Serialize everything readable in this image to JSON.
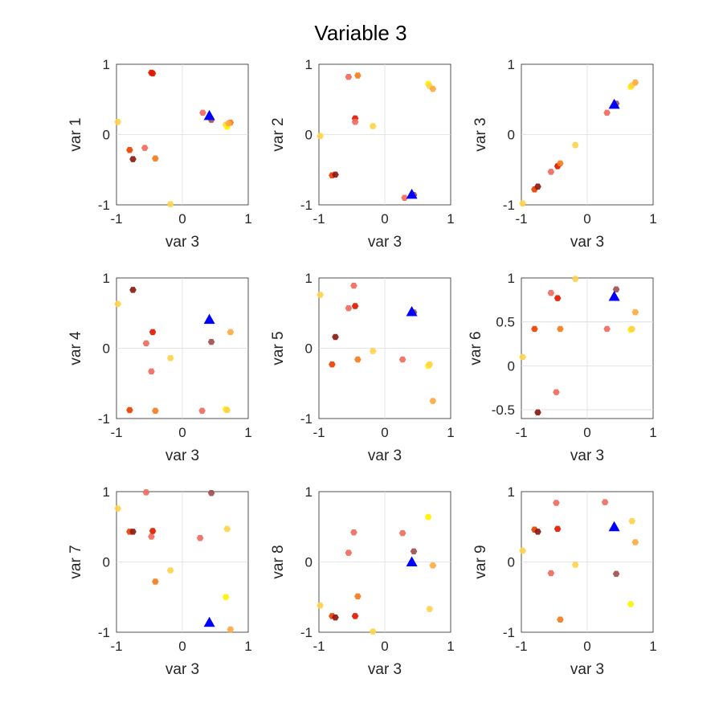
{
  "figure": {
    "title": "Variable 3"
  },
  "colors": {
    "marker_fill": "#0000ff",
    "zero_line": "#dcdcdc",
    "axis": "#262626"
  },
  "chart_data": [
    {
      "type": "scatter",
      "xlabel": "var 3",
      "ylabel": "var 1",
      "xlim": [
        -1,
        1
      ],
      "ylim": [
        -1,
        1
      ],
      "xticks": [
        -1,
        0,
        1
      ],
      "yticks": [
        -1,
        0,
        1
      ],
      "points": [
        {
          "x": -0.98,
          "y": 0.18,
          "color": "#ffd24a"
        },
        {
          "x": -0.8,
          "y": -0.22,
          "color": "#ee4000"
        },
        {
          "x": -0.75,
          "y": -0.35,
          "color": "#8b1a10"
        },
        {
          "x": -0.57,
          "y": -0.19,
          "color": "#f06a60"
        },
        {
          "x": -0.47,
          "y": 0.88,
          "color": "#e01a00"
        },
        {
          "x": -0.45,
          "y": 0.87,
          "color": "#e01a00"
        },
        {
          "x": -0.41,
          "y": -0.34,
          "color": "#f57c1e"
        },
        {
          "x": -0.18,
          "y": -0.99,
          "color": "#ffd24a"
        },
        {
          "x": 0.31,
          "y": 0.31,
          "color": "#f06a60"
        },
        {
          "x": 0.44,
          "y": 0.21,
          "color": "#a05050"
        },
        {
          "x": 0.66,
          "y": 0.14,
          "color": "#ffd24a"
        },
        {
          "x": 0.68,
          "y": 0.11,
          "color": "#fff200"
        },
        {
          "x": 0.73,
          "y": 0.17,
          "color": "#f57c1e"
        },
        {
          "x": 0.7,
          "y": 0.16,
          "color": "#ffaa40"
        }
      ],
      "marker": {
        "x": 0.41,
        "y": 0.27
      }
    },
    {
      "type": "scatter",
      "xlabel": "var 3",
      "ylabel": "var 2",
      "xlim": [
        -1,
        1
      ],
      "ylim": [
        -1,
        1
      ],
      "xticks": [
        -1,
        0,
        1
      ],
      "yticks": [
        -1,
        0,
        1
      ],
      "points": [
        {
          "x": -0.98,
          "y": -0.02,
          "color": "#ffd24a"
        },
        {
          "x": -0.8,
          "y": -0.58,
          "color": "#ee4000"
        },
        {
          "x": -0.75,
          "y": -0.57,
          "color": "#8b1a10"
        },
        {
          "x": -0.55,
          "y": 0.82,
          "color": "#f06a60"
        },
        {
          "x": -0.45,
          "y": 0.23,
          "color": "#e01a00"
        },
        {
          "x": -0.45,
          "y": 0.18,
          "color": "#f06a60"
        },
        {
          "x": -0.41,
          "y": 0.84,
          "color": "#f57c1e"
        },
        {
          "x": -0.18,
          "y": 0.12,
          "color": "#ffd24a"
        },
        {
          "x": 0.3,
          "y": -0.9,
          "color": "#f06a60"
        },
        {
          "x": 0.44,
          "y": -0.86,
          "color": "#a05050"
        },
        {
          "x": 0.66,
          "y": 0.72,
          "color": "#fff200"
        },
        {
          "x": 0.68,
          "y": 0.69,
          "color": "#ffd24a"
        },
        {
          "x": 0.73,
          "y": 0.65,
          "color": "#ffaa40"
        }
      ],
      "marker": {
        "x": 0.41,
        "y": -0.85
      }
    },
    {
      "type": "scatter",
      "xlabel": "var 3",
      "ylabel": "var 3",
      "xlim": [
        -1,
        1
      ],
      "ylim": [
        -1,
        1
      ],
      "xticks": [
        -1,
        0,
        1
      ],
      "yticks": [
        -1,
        0,
        1
      ],
      "points": [
        {
          "x": -0.98,
          "y": -0.98,
          "color": "#ffd24a"
        },
        {
          "x": -0.8,
          "y": -0.78,
          "color": "#ee4000"
        },
        {
          "x": -0.75,
          "y": -0.74,
          "color": "#8b1a10"
        },
        {
          "x": -0.55,
          "y": -0.53,
          "color": "#f06a60"
        },
        {
          "x": -0.45,
          "y": -0.45,
          "color": "#e01a00"
        },
        {
          "x": -0.41,
          "y": -0.41,
          "color": "#f57c1e"
        },
        {
          "x": -0.18,
          "y": -0.15,
          "color": "#ffd24a"
        },
        {
          "x": 0.3,
          "y": 0.31,
          "color": "#f06a60"
        },
        {
          "x": 0.44,
          "y": 0.44,
          "color": "#a05050"
        },
        {
          "x": 0.66,
          "y": 0.68,
          "color": "#fff200"
        },
        {
          "x": 0.68,
          "y": 0.7,
          "color": "#ffd24a"
        },
        {
          "x": 0.73,
          "y": 0.74,
          "color": "#ffaa40"
        }
      ],
      "marker": {
        "x": 0.41,
        "y": 0.43
      }
    },
    {
      "type": "scatter",
      "xlabel": "var 3",
      "ylabel": "var 4",
      "xlim": [
        -1,
        1
      ],
      "ylim": [
        -1,
        1
      ],
      "xticks": [
        -1,
        0,
        1
      ],
      "yticks": [
        -1,
        0,
        1
      ],
      "points": [
        {
          "x": -0.98,
          "y": 0.63,
          "color": "#ffd24a"
        },
        {
          "x": -0.8,
          "y": -0.88,
          "color": "#ee4000"
        },
        {
          "x": -0.75,
          "y": 0.83,
          "color": "#8b1a10"
        },
        {
          "x": -0.55,
          "y": 0.07,
          "color": "#f06a60"
        },
        {
          "x": -0.45,
          "y": 0.23,
          "color": "#e01a00"
        },
        {
          "x": -0.47,
          "y": -0.33,
          "color": "#f06a60"
        },
        {
          "x": -0.41,
          "y": -0.89,
          "color": "#f57c1e"
        },
        {
          "x": -0.18,
          "y": -0.14,
          "color": "#ffd24a"
        },
        {
          "x": 0.3,
          "y": -0.89,
          "color": "#f06a60"
        },
        {
          "x": 0.44,
          "y": 0.09,
          "color": "#a05050"
        },
        {
          "x": 0.66,
          "y": -0.87,
          "color": "#fff200"
        },
        {
          "x": 0.68,
          "y": -0.88,
          "color": "#ffd24a"
        },
        {
          "x": 0.73,
          "y": 0.23,
          "color": "#ffaa40"
        }
      ],
      "marker": {
        "x": 0.41,
        "y": 0.41
      }
    },
    {
      "type": "scatter",
      "xlabel": "var 3",
      "ylabel": "var 5",
      "xlim": [
        -1,
        1
      ],
      "ylim": [
        -1,
        1
      ],
      "xticks": [
        -1,
        0,
        1
      ],
      "yticks": [
        -1,
        0,
        1
      ],
      "points": [
        {
          "x": -0.98,
          "y": 0.76,
          "color": "#ffd24a"
        },
        {
          "x": -0.8,
          "y": -0.23,
          "color": "#ee4000"
        },
        {
          "x": -0.75,
          "y": 0.16,
          "color": "#8b1a10"
        },
        {
          "x": -0.55,
          "y": 0.57,
          "color": "#f06a60"
        },
        {
          "x": -0.47,
          "y": 0.89,
          "color": "#f06a60"
        },
        {
          "x": -0.45,
          "y": 0.6,
          "color": "#e01a00"
        },
        {
          "x": -0.41,
          "y": -0.16,
          "color": "#f57c1e"
        },
        {
          "x": -0.18,
          "y": -0.04,
          "color": "#ffd24a"
        },
        {
          "x": 0.27,
          "y": -0.16,
          "color": "#f06a60"
        },
        {
          "x": 0.44,
          "y": 0.51,
          "color": "#a05050"
        },
        {
          "x": 0.66,
          "y": -0.25,
          "color": "#fff200"
        },
        {
          "x": 0.68,
          "y": -0.23,
          "color": "#ffd24a"
        },
        {
          "x": 0.73,
          "y": -0.75,
          "color": "#ffaa40"
        }
      ],
      "marker": {
        "x": 0.41,
        "y": 0.52
      }
    },
    {
      "type": "scatter",
      "xlabel": "var 3",
      "ylabel": "var 6",
      "xlim": [
        -1,
        1
      ],
      "ylim": [
        -0.6,
        1
      ],
      "xticks": [
        -1,
        0,
        1
      ],
      "yticks": [
        -0.5,
        0,
        0.5,
        1
      ],
      "yticklabels": [
        "-0.5",
        "0",
        "0.5",
        "1"
      ],
      "points": [
        {
          "x": -0.98,
          "y": 0.1,
          "color": "#ffd24a"
        },
        {
          "x": -0.8,
          "y": 0.42,
          "color": "#ee4000"
        },
        {
          "x": -0.75,
          "y": -0.53,
          "color": "#8b1a10"
        },
        {
          "x": -0.55,
          "y": 0.83,
          "color": "#f06a60"
        },
        {
          "x": -0.47,
          "y": -0.3,
          "color": "#f06a60"
        },
        {
          "x": -0.45,
          "y": 0.77,
          "color": "#e01a00"
        },
        {
          "x": -0.41,
          "y": 0.42,
          "color": "#f57c1e"
        },
        {
          "x": -0.18,
          "y": 0.99,
          "color": "#ffd24a"
        },
        {
          "x": 0.3,
          "y": 0.42,
          "color": "#f06a60"
        },
        {
          "x": 0.44,
          "y": 0.87,
          "color": "#a05050"
        },
        {
          "x": 0.66,
          "y": 0.41,
          "color": "#fff200"
        },
        {
          "x": 0.68,
          "y": 0.42,
          "color": "#ffd24a"
        },
        {
          "x": 0.73,
          "y": 0.61,
          "color": "#ffaa40"
        }
      ],
      "marker": {
        "x": 0.41,
        "y": 0.79
      }
    },
    {
      "type": "scatter",
      "xlabel": "var 3",
      "ylabel": "var 7",
      "xlim": [
        -1,
        1
      ],
      "ylim": [
        -1,
        1
      ],
      "xticks": [
        -1,
        0,
        1
      ],
      "yticks": [
        -1,
        0,
        1
      ],
      "points": [
        {
          "x": -0.98,
          "y": 0.76,
          "color": "#ffd24a"
        },
        {
          "x": -0.8,
          "y": 0.43,
          "color": "#ee4000"
        },
        {
          "x": -0.75,
          "y": 0.43,
          "color": "#8b1a10"
        },
        {
          "x": -0.55,
          "y": 0.99,
          "color": "#f06a60"
        },
        {
          "x": -0.47,
          "y": 0.36,
          "color": "#f06a60"
        },
        {
          "x": -0.45,
          "y": 0.44,
          "color": "#e01a00"
        },
        {
          "x": -0.41,
          "y": -0.28,
          "color": "#f57c1e"
        },
        {
          "x": -0.18,
          "y": -0.12,
          "color": "#ffd24a"
        },
        {
          "x": 0.27,
          "y": 0.34,
          "color": "#f06a60"
        },
        {
          "x": 0.44,
          "y": 0.98,
          "color": "#a05050"
        },
        {
          "x": 0.66,
          "y": -0.5,
          "color": "#fff200"
        },
        {
          "x": 0.68,
          "y": 0.47,
          "color": "#ffd24a"
        },
        {
          "x": 0.73,
          "y": -0.96,
          "color": "#ffaa40"
        }
      ],
      "marker": {
        "x": 0.41,
        "y": -0.86
      }
    },
    {
      "type": "scatter",
      "xlabel": "var 3",
      "ylabel": "var 8",
      "xlim": [
        -1,
        1
      ],
      "ylim": [
        -1,
        1
      ],
      "xticks": [
        -1,
        0,
        1
      ],
      "yticks": [
        -1,
        0,
        1
      ],
      "points": [
        {
          "x": -0.98,
          "y": -0.62,
          "color": "#ffd24a"
        },
        {
          "x": -0.8,
          "y": -0.77,
          "color": "#ee4000"
        },
        {
          "x": -0.75,
          "y": -0.79,
          "color": "#8b1a10"
        },
        {
          "x": -0.55,
          "y": 0.13,
          "color": "#f06a60"
        },
        {
          "x": -0.47,
          "y": 0.42,
          "color": "#f06a60"
        },
        {
          "x": -0.45,
          "y": -0.77,
          "color": "#e01a00"
        },
        {
          "x": -0.41,
          "y": -0.49,
          "color": "#f57c1e"
        },
        {
          "x": -0.18,
          "y": -0.99,
          "color": "#ffd24a"
        },
        {
          "x": 0.27,
          "y": 0.41,
          "color": "#f06a60"
        },
        {
          "x": 0.44,
          "y": 0.15,
          "color": "#a05050"
        },
        {
          "x": 0.66,
          "y": 0.64,
          "color": "#fff200"
        },
        {
          "x": 0.68,
          "y": -0.67,
          "color": "#ffd24a"
        },
        {
          "x": 0.73,
          "y": -0.05,
          "color": "#ffaa40"
        }
      ],
      "marker": {
        "x": 0.41,
        "y": 0.0
      }
    },
    {
      "type": "scatter",
      "xlabel": "var 3",
      "ylabel": "var 9",
      "xlim": [
        -1,
        1
      ],
      "ylim": [
        -1,
        1
      ],
      "xticks": [
        -1,
        0,
        1
      ],
      "yticks": [
        -1,
        0,
        1
      ],
      "points": [
        {
          "x": -0.98,
          "y": 0.16,
          "color": "#ffd24a"
        },
        {
          "x": -0.8,
          "y": 0.46,
          "color": "#ee4000"
        },
        {
          "x": -0.75,
          "y": 0.43,
          "color": "#8b1a10"
        },
        {
          "x": -0.55,
          "y": -0.16,
          "color": "#f06a60"
        },
        {
          "x": -0.47,
          "y": 0.84,
          "color": "#f06a60"
        },
        {
          "x": -0.45,
          "y": 0.47,
          "color": "#e01a00"
        },
        {
          "x": -0.41,
          "y": -0.82,
          "color": "#f57c1e"
        },
        {
          "x": -0.18,
          "y": -0.04,
          "color": "#ffd24a"
        },
        {
          "x": 0.27,
          "y": 0.85,
          "color": "#f06a60"
        },
        {
          "x": 0.44,
          "y": -0.17,
          "color": "#a05050"
        },
        {
          "x": 0.66,
          "y": -0.6,
          "color": "#fff200"
        },
        {
          "x": 0.68,
          "y": 0.58,
          "color": "#ffd24a"
        },
        {
          "x": 0.73,
          "y": 0.28,
          "color": "#ffaa40"
        }
      ],
      "marker": {
        "x": 0.41,
        "y": 0.5
      }
    }
  ]
}
